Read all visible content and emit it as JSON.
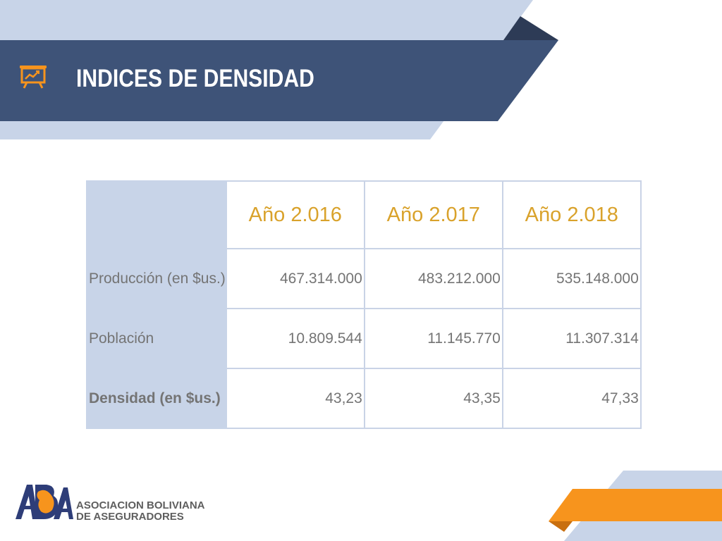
{
  "title": "INDICES DE DENSIDAD",
  "colors": {
    "banner_dark": "#3e5378",
    "banner_light": "#c8d4e8",
    "banner_tip": "#2d3b56",
    "accent_gold": "#d9a22b",
    "accent_orange": "#f7941d",
    "text_gray": "#747474"
  },
  "icons": {
    "title_icon": "presentation-chart-icon",
    "logo": "aba-logo"
  },
  "table": {
    "headers": [
      "Año 2.016",
      "Año 2.017",
      "Año 2.018"
    ],
    "rows": [
      {
        "label": "Producción (en $us.)",
        "values": [
          "467.314.000",
          "483.212.000",
          "535.148.000"
        ]
      },
      {
        "label": "Población",
        "values": [
          "10.809.544",
          "11.145.770",
          "11.307.314"
        ]
      },
      {
        "label": "Densidad (en $us.)",
        "values": [
          "43,23",
          "43,35",
          "47,33"
        ]
      }
    ]
  },
  "footer": {
    "org_line1": "ASOCIACION BOLIVIANA",
    "org_line2": "DE ASEGURADORES"
  }
}
